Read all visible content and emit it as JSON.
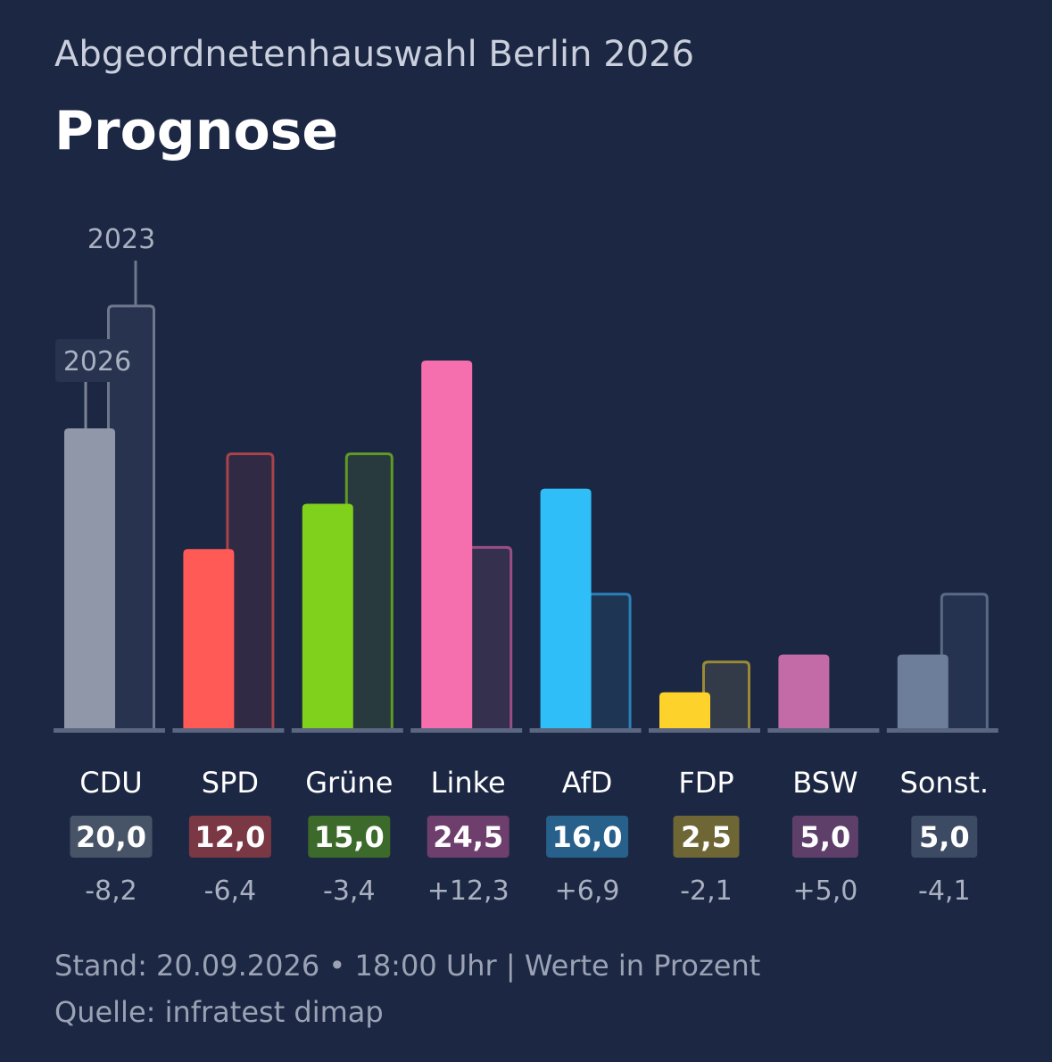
{
  "header": {
    "subtitle": "Abgeordnetenhauswahl Berlin 2026",
    "title": "Prognose"
  },
  "chart_data": {
    "type": "bar",
    "categories": [
      "CDU",
      "SPD",
      "Grüne",
      "Linke",
      "AfD",
      "FDP",
      "BSW",
      "Sonst."
    ],
    "series": [
      {
        "name": "2026",
        "values": [
          20.0,
          12.0,
          15.0,
          24.5,
          16.0,
          2.5,
          5.0,
          5.0
        ]
      },
      {
        "name": "2023",
        "values": [
          28.2,
          18.4,
          18.4,
          12.2,
          9.1,
          4.6,
          0,
          9.1
        ]
      }
    ],
    "value_labels": [
      "20,0",
      "12,0",
      "15,0",
      "24,5",
      "16,0",
      "2,5",
      "5,0",
      "5,0"
    ],
    "diff_labels": [
      "-8,2",
      "-6,4",
      "-3,4",
      "+12,3",
      "+6,9",
      "-2,1",
      "+5,0",
      "-4,1"
    ],
    "colors": [
      "#9097a8",
      "#ff5a55",
      "#7fd11c",
      "#f56eae",
      "#2fbef7",
      "#fdd32b",
      "#c26ba7",
      "#6c7e99"
    ],
    "badge_colors": [
      "#475366",
      "#7a3845",
      "#3c6a2a",
      "#6e3e6c",
      "#27608a",
      "#6e6635",
      "#5e3f6a",
      "#3c4a63"
    ],
    "old_outline_colors": [
      "#6e788d",
      "#a8434a",
      "#5f9a26",
      "#9a4e84",
      "#2a80b8",
      "#9a8a36",
      "#7e5a80",
      "#5a6a86"
    ],
    "old_fill_colors": [
      "#283350",
      "#302a45",
      "#283a3e",
      "#35304d",
      "#1f3554",
      "#333a48",
      "#2c2f4a",
      "#263350"
    ],
    "annotations": {
      "label_2023": "2023",
      "label_2026": "2026"
    },
    "ylim": [
      0,
      30
    ]
  },
  "footer": {
    "stand": "Stand: 20.09.2026 • 18:00 Uhr | Werte in Prozent",
    "source": "Quelle: infratest dimap"
  }
}
